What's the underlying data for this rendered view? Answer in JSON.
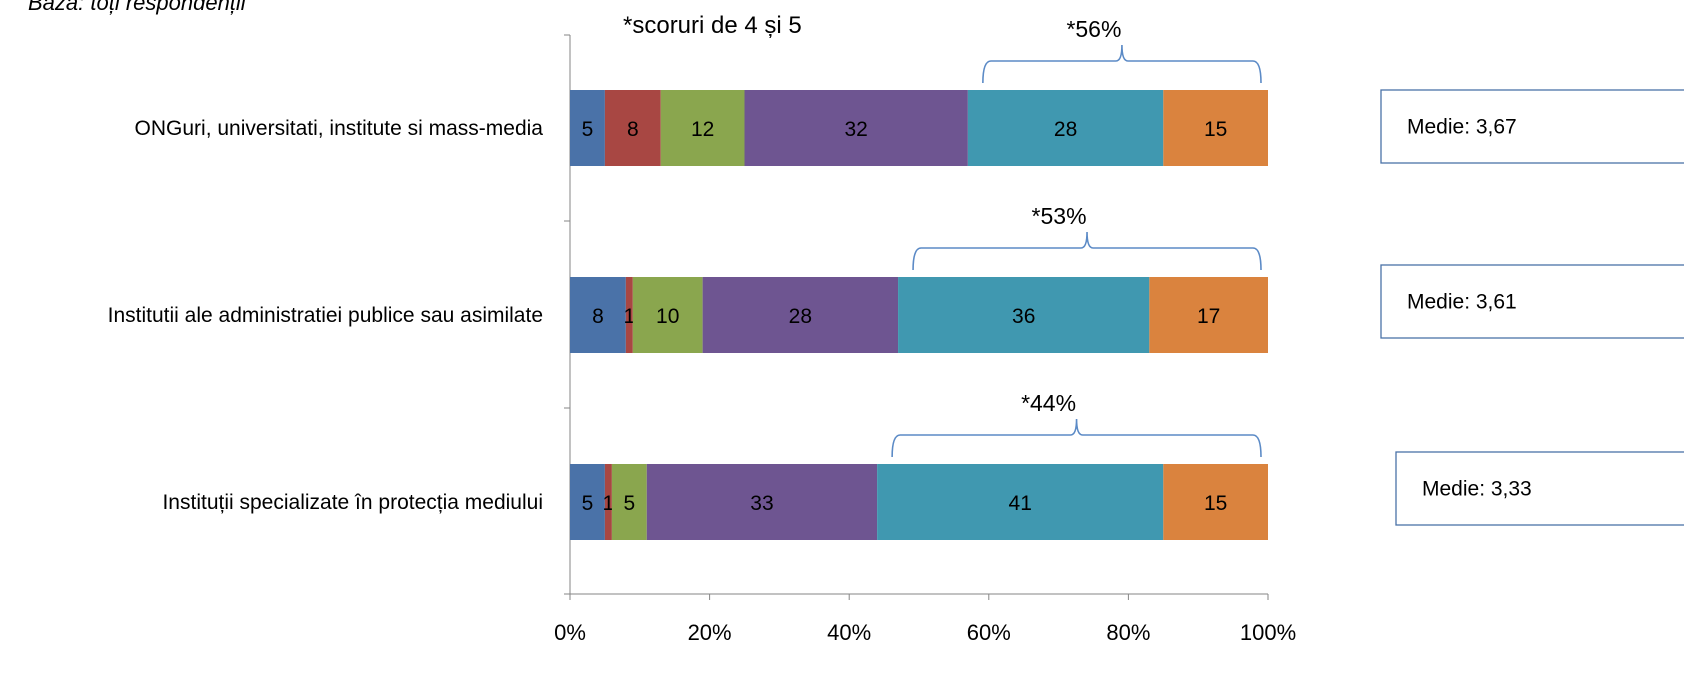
{
  "notes": {
    "base": "Baza: toți respondenții",
    "scores": "*scoruri de 4 și 5"
  },
  "colors": [
    "#4A72A8",
    "#A84743",
    "#8AA64E",
    "#6E5591",
    "#4098B0",
    "#DA833E"
  ],
  "brace_color": "#5B8AC6",
  "chart_data": {
    "type": "bar",
    "orientation": "horizontal",
    "stacked": "percent",
    "categories": [
      "ONGuri, universitati, institute si mass-media",
      "Institutii ale administratiei publice sau asimilate",
      "Instituții specializate în protecția mediului"
    ],
    "series_values": [
      [
        5,
        8,
        12,
        32,
        28,
        15
      ],
      [
        8,
        1,
        10,
        28,
        36,
        17
      ],
      [
        5,
        1,
        5,
        33,
        41,
        15
      ]
    ],
    "highlight_labels": [
      "*56%",
      "*53%",
      "*44%"
    ],
    "means": [
      "Medie: 3,67",
      "Medie: 3,61",
      "Medie: 3,33"
    ],
    "x_ticks": [
      "0%",
      "20%",
      "40%",
      "60%",
      "80%",
      "100%"
    ],
    "xlim": [
      0,
      100
    ],
    "grid": false,
    "legend": "none"
  }
}
